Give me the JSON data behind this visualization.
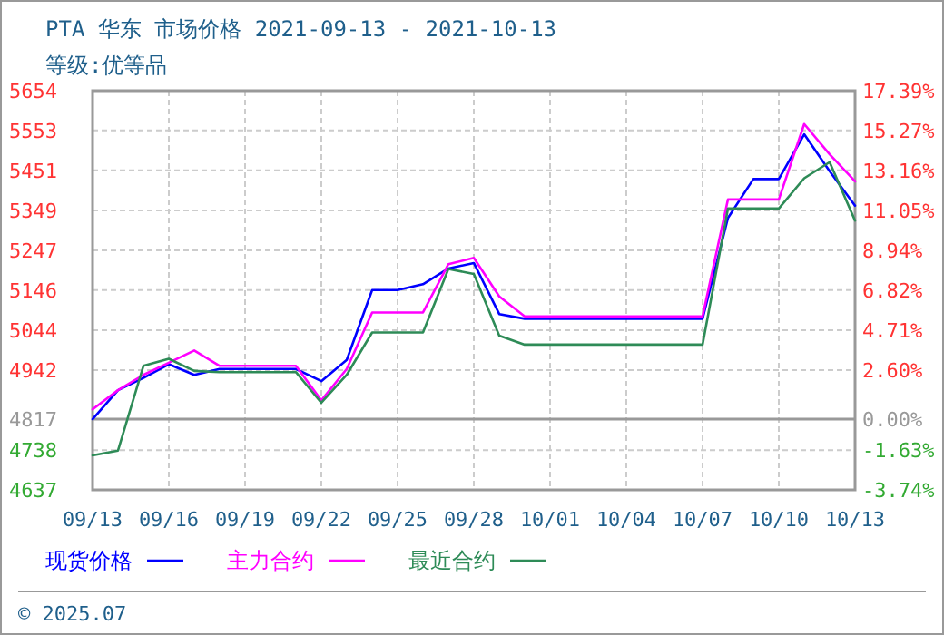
{
  "chart_data": {
    "type": "line",
    "title": "PTA 华东 市场价格 2021-09-13 - 2021-10-13",
    "subtitle": "等级:优等品",
    "x": [
      "2021-09-13",
      "2021-09-14",
      "2021-09-15",
      "2021-09-16",
      "2021-09-17",
      "2021-09-18",
      "2021-09-19",
      "2021-09-20",
      "2021-09-21",
      "2021-09-22",
      "2021-09-23",
      "2021-09-24",
      "2021-09-25",
      "2021-09-26",
      "2021-09-27",
      "2021-09-28",
      "2021-09-29",
      "2021-09-30",
      "2021-10-01",
      "2021-10-02",
      "2021-10-03",
      "2021-10-04",
      "2021-10-05",
      "2021-10-06",
      "2021-10-07",
      "2021-10-08",
      "2021-10-09",
      "2021-10-10",
      "2021-10-11",
      "2021-10-12",
      "2021-10-13"
    ],
    "series": [
      {
        "name": "现货价格",
        "color": "#0000ff",
        "values": [
          4817,
          4891,
          4922,
          4957,
          4930,
          4945,
          4945,
          4945,
          4945,
          4914,
          4968,
          5146,
          5146,
          5161,
          5201,
          5215,
          5085,
          5073,
          5073,
          5073,
          5073,
          5073,
          5073,
          5073,
          5073,
          5330,
          5429,
          5429,
          5543,
          5449,
          5361
        ]
      },
      {
        "name": "主力合约",
        "color": "#ff00ff",
        "values": [
          4842,
          4891,
          4930,
          4961,
          4992,
          4953,
          4953,
          4953,
          4953,
          4865,
          4945,
          5089,
          5089,
          5089,
          5212,
          5228,
          5130,
          5079,
          5079,
          5079,
          5079,
          5079,
          5079,
          5079,
          5079,
          5377,
          5377,
          5377,
          5569,
          5492,
          5423
        ]
      },
      {
        "name": "最近合约",
        "color": "#2e8b57",
        "values": [
          4725,
          4737,
          4953,
          4971,
          4940,
          4937,
          4937,
          4937,
          4937,
          4859,
          4930,
          5038,
          5038,
          5038,
          5200,
          5187,
          5030,
          5007,
          5007,
          5007,
          5007,
          5007,
          5007,
          5007,
          5007,
          5354,
          5354,
          5354,
          5431,
          5472,
          5323
        ]
      }
    ],
    "xlim": [
      "2021-09-13",
      "2021-10-13"
    ],
    "xticks": [
      {
        "value": "2021-09-13",
        "label": "09/13"
      },
      {
        "value": "2021-09-16",
        "label": "09/16"
      },
      {
        "value": "2021-09-19",
        "label": "09/19"
      },
      {
        "value": "2021-09-22",
        "label": "09/22"
      },
      {
        "value": "2021-09-25",
        "label": "09/25"
      },
      {
        "value": "2021-09-28",
        "label": "09/28"
      },
      {
        "value": "2021-10-01",
        "label": "10/01"
      },
      {
        "value": "2021-10-04",
        "label": "10/04"
      },
      {
        "value": "2021-10-07",
        "label": "10/07"
      },
      {
        "value": "2021-10-10",
        "label": "10/10"
      },
      {
        "value": "2021-10-13",
        "label": "10/13"
      }
    ],
    "ylim": [
      4637,
      5654
    ],
    "yticks": [
      4637,
      4738,
      4817,
      4942,
      5044,
      5146,
      5247,
      5349,
      5451,
      5553,
      5654
    ],
    "y2lim": [
      -3.74,
      17.39
    ],
    "y2ticks": [
      {
        "value": -3.74,
        "label": "-3.74%"
      },
      {
        "value": -1.63,
        "label": "-1.63%"
      },
      {
        "value": 0,
        "label": "0.00%"
      },
      {
        "value": 2.6,
        "label": "2.60%"
      },
      {
        "value": 4.71,
        "label": "4.71%"
      },
      {
        "value": 6.82,
        "label": "6.82%"
      },
      {
        "value": 8.94,
        "label": "8.94%"
      },
      {
        "value": 11.05,
        "label": "11.05%"
      },
      {
        "value": 13.16,
        "label": "13.16%"
      },
      {
        "value": 15.27,
        "label": "15.27%"
      },
      {
        "value": 17.39,
        "label": "17.39%"
      }
    ],
    "ref_lines": [
      {
        "axis": "y",
        "value": 4817,
        "label": null,
        "color": "#999999"
      }
    ],
    "grid": true,
    "legend": "bottom",
    "marker": "none",
    "line_style": "solid",
    "annotations": [
      "© 2025.07"
    ]
  }
}
